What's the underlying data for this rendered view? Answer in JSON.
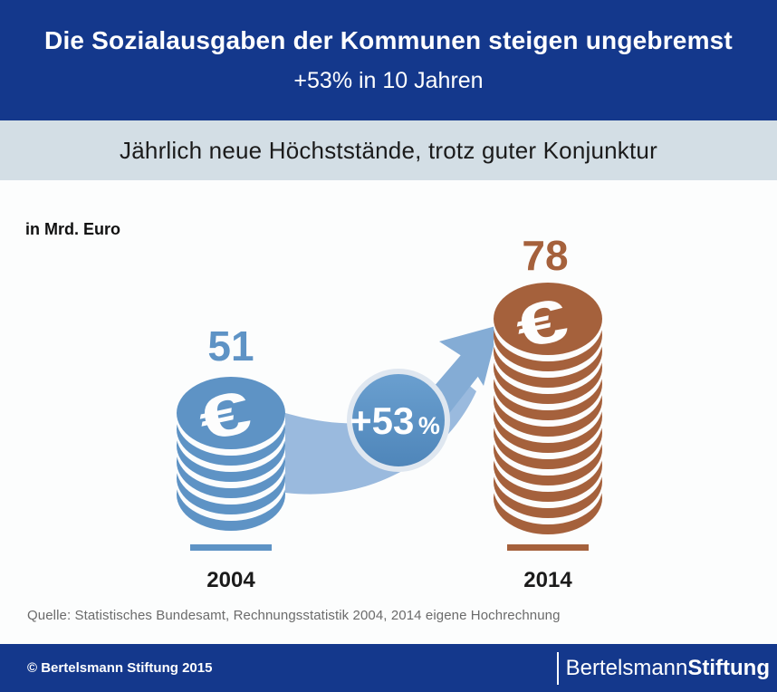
{
  "header": {
    "title": "Die Sozialausgaben der Kommunen steigen ungebremst",
    "subtitle": "+53% in 10 Jahren"
  },
  "band": {
    "text": "Jährlich neue Höchststände, trotz guter Konjunktur"
  },
  "main": {
    "unit_label": "in Mrd. Euro",
    "source": "Quelle: Statistisches Bundesamt, Rechnungsstatistik 2004, 2014 eigene Hochrechnung"
  },
  "footer": {
    "copyright": "© Bertelsmann Stiftung 2015",
    "logo_name": "Bertelsmann",
    "logo_suffix": "Stiftung"
  },
  "colors": {
    "header_bg": "#14388c",
    "band_bg": "#d3dee5",
    "main_bg": "#fcfdfd",
    "coins_2004": "#5e93c5",
    "coins_2014": "#a5613c",
    "arrow_band": "#9abade",
    "arrow_head": "#84acd5",
    "badge_top": "#6ba0d0",
    "badge_bottom": "#4e85b9",
    "badge_ring": "#dfe7f0",
    "text_dark": "#1b1b1b",
    "source_gray": "#6b6b6b"
  },
  "chart_data": {
    "type": "bar",
    "variant": "pictorial-coin-stacks",
    "title": "Die Sozialausgaben der Kommunen steigen ungebremst",
    "subtitle": "Jährlich neue Höchststände, trotz guter Konjunktur",
    "ylabel": "in Mrd. Euro",
    "categories": [
      "2004",
      "2014"
    ],
    "values": [
      51,
      78
    ],
    "change": "+53% in 10 Jahren",
    "currency": "€",
    "badge": {
      "value": "+53",
      "percent": "%"
    },
    "series": [
      {
        "year": "2004",
        "value": "51",
        "coin_layers": 6,
        "color": "#5e93c5"
      },
      {
        "year": "2014",
        "value": "78",
        "coin_layers": 12,
        "color": "#a5613c"
      }
    ]
  }
}
